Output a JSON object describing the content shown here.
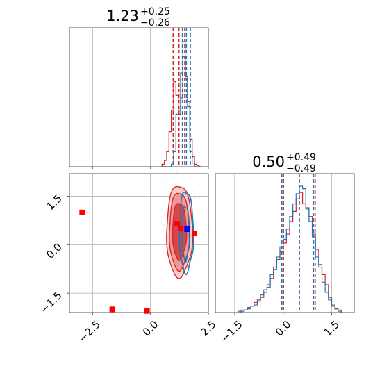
{
  "colors": {
    "red": "#d62728",
    "blue": "#1f77b4",
    "marker_red": "#ff0000",
    "marker_blue": "#0000ff",
    "fill_light": "#f6c4c4",
    "fill_mid": "#ec8e8e",
    "fill_dark": "#d43737"
  },
  "chart_data": [
    {
      "type": "histogram",
      "panel": "top-left",
      "title": {
        "value": "1.23",
        "plus": "+0.25",
        "minus": "−0.26"
      },
      "xlim": [
        -3.5,
        2.5
      ],
      "grid": true,
      "bin_edges": [
        0.5,
        0.6,
        0.7,
        0.8,
        0.9,
        1.0,
        1.1,
        1.2,
        1.3,
        1.4,
        1.5,
        1.6,
        1.7,
        1.8,
        1.9,
        2.0,
        2.1,
        2.2
      ],
      "series": [
        {
          "color": "red",
          "counts": [
            0.02,
            0.05,
            0.12,
            0.28,
            0.45,
            0.68,
            0.57,
            0.42,
            0.55,
            0.88,
            0.7,
            0.52,
            0.22,
            0.08,
            0.02,
            0.01,
            0
          ]
        },
        {
          "color": "blue",
          "counts": [
            0,
            0,
            0,
            0,
            0.02,
            0.12,
            0.42,
            0.45,
            0.75,
            1.0,
            0.72,
            0.48,
            0.12,
            0.03,
            0,
            0,
            0
          ]
        }
      ],
      "vlines": [
        {
          "color": "red",
          "x": 0.98
        },
        {
          "color": "red",
          "x": 1.23
        },
        {
          "color": "red",
          "x": 1.48
        },
        {
          "color": "blue",
          "x": 1.38
        },
        {
          "color": "blue",
          "x": 1.55
        },
        {
          "color": "blue",
          "x": 1.72
        }
      ]
    },
    {
      "type": "contour",
      "panel": "bottom-left",
      "xlim": [
        -3.5,
        2.5
      ],
      "ylim": [
        -2.1,
        2.2
      ],
      "xticks": [
        -2.5,
        0.0,
        2.5
      ],
      "xtick_labels": [
        "−2.5",
        "0.0",
        "2.5"
      ],
      "yticks": [
        -1.5,
        0.0,
        1.5
      ],
      "ytick_labels": [
        "−1.5",
        "0.0",
        "1.5"
      ],
      "grid": true,
      "red_contours": [
        {
          "cx": 1.25,
          "cy": 0.42,
          "rx": 0.56,
          "ry": 1.42
        },
        {
          "cx": 1.25,
          "cy": 0.42,
          "rx": 0.44,
          "ry": 1.2
        },
        {
          "cx": 1.25,
          "cy": 0.42,
          "rx": 0.3,
          "ry": 0.88
        }
      ],
      "blue_contours": [
        {
          "cx": 1.55,
          "cy": 0.4,
          "rx": 0.3,
          "ry": 1.25
        },
        {
          "cx": 1.52,
          "cy": 0.35,
          "rx": 0.15,
          "ry": 0.85
        }
      ],
      "red_markers": [
        {
          "x": -2.95,
          "y": 1.0
        },
        {
          "x": -1.65,
          "y": -2.0
        },
        {
          "x": -0.15,
          "y": -2.05
        },
        {
          "x": 1.15,
          "y": 0.65
        },
        {
          "x": 1.3,
          "y": 0.5
        },
        {
          "x": 1.9,
          "y": 0.35
        }
      ],
      "blue_markers": [
        {
          "x": 1.58,
          "y": 0.48
        }
      ]
    },
    {
      "type": "histogram",
      "panel": "bottom-right",
      "title": {
        "value": "0.50",
        "plus": "+0.49",
        "minus": "−0.49"
      },
      "xlim": [
        -2.1,
        2.2
      ],
      "xticks": [
        -1.5,
        0.0,
        1.5
      ],
      "xtick_labels": [
        "−1.5",
        "0.0",
        "1.5"
      ],
      "grid": true,
      "bin_edges": [
        -1.4,
        -1.3,
        -1.2,
        -1.1,
        -1.0,
        -0.9,
        -0.8,
        -0.7,
        -0.6,
        -0.5,
        -0.4,
        -0.3,
        -0.2,
        -0.1,
        0.0,
        0.1,
        0.2,
        0.3,
        0.4,
        0.5,
        0.6,
        0.7,
        0.8,
        0.9,
        1.0,
        1.1,
        1.2,
        1.3,
        1.4,
        1.5,
        1.6,
        1.7,
        1.8
      ],
      "series": [
        {
          "color": "red",
          "counts": [
            0.01,
            0.02,
            0.02,
            0.04,
            0.05,
            0.08,
            0.1,
            0.12,
            0.16,
            0.22,
            0.27,
            0.36,
            0.42,
            0.48,
            0.55,
            0.62,
            0.72,
            0.8,
            0.9,
            0.95,
            0.86,
            0.83,
            0.76,
            0.62,
            0.5,
            0.38,
            0.3,
            0.22,
            0.12,
            0.06,
            0.03,
            0.02
          ]
        },
        {
          "color": "blue",
          "counts": [
            0,
            0.01,
            0.02,
            0.03,
            0.05,
            0.06,
            0.09,
            0.14,
            0.18,
            0.2,
            0.3,
            0.34,
            0.44,
            0.52,
            0.58,
            0.66,
            0.76,
            0.86,
            0.94,
            1.0,
            0.98,
            0.82,
            0.72,
            0.6,
            0.44,
            0.36,
            0.24,
            0.16,
            0.1,
            0.05,
            0.02,
            0.01
          ]
        }
      ],
      "vlines": [
        {
          "color": "red",
          "x": 0.01
        },
        {
          "color": "red",
          "x": 0.5
        },
        {
          "color": "red",
          "x": 0.99
        },
        {
          "color": "blue",
          "x": -0.04
        },
        {
          "color": "blue",
          "x": 0.5
        },
        {
          "color": "blue",
          "x": 0.94
        }
      ]
    }
  ]
}
